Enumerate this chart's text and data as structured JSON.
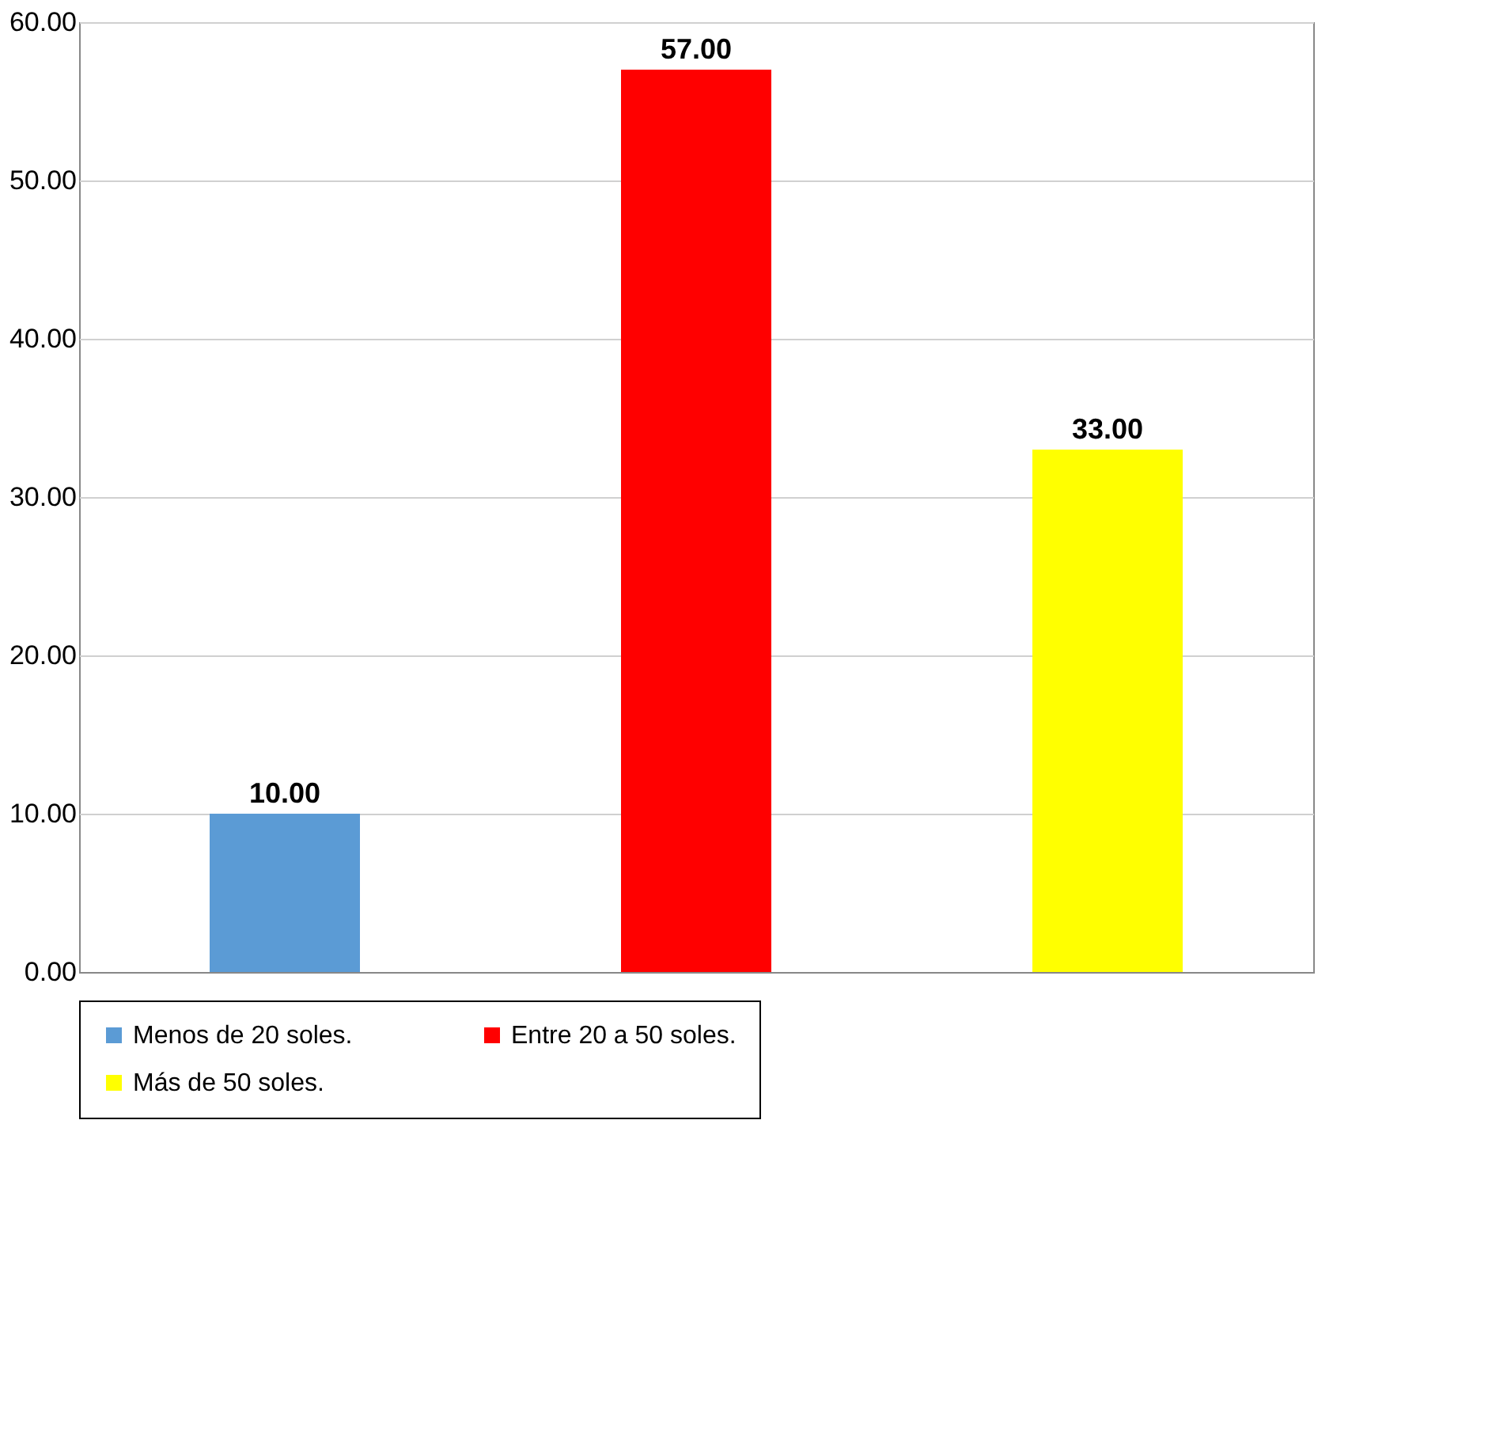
{
  "chart_data": {
    "type": "bar",
    "categories": [
      null,
      null,
      null
    ],
    "series": [
      {
        "name": "Menos de 20 soles.",
        "color": "#5b9bd5",
        "values": [
          10,
          null,
          null
        ],
        "value_labels": [
          "10.00",
          null,
          null
        ]
      },
      {
        "name": "Entre 20 a 50 soles.",
        "color": "#ff0000",
        "values": [
          null,
          57,
          null
        ],
        "value_labels": [
          null,
          "57.00",
          null
        ]
      },
      {
        "name": "Más de 50 soles.",
        "color": "#ffff00",
        "values": [
          null,
          null,
          33
        ],
        "value_labels": [
          null,
          null,
          "33.00"
        ]
      }
    ],
    "ylim": [
      0,
      60
    ],
    "yticks": [
      {
        "value": 0,
        "label": "0.00"
      },
      {
        "value": 10,
        "label": "10.00"
      },
      {
        "value": 20,
        "label": "20.00"
      },
      {
        "value": 30,
        "label": "30.00"
      },
      {
        "value": 40,
        "label": "40.00"
      },
      {
        "value": 50,
        "label": "50.00"
      },
      {
        "value": 60,
        "label": "60.00"
      }
    ],
    "grid": "y",
    "legend": "bottom",
    "tick_labels": "y"
  }
}
